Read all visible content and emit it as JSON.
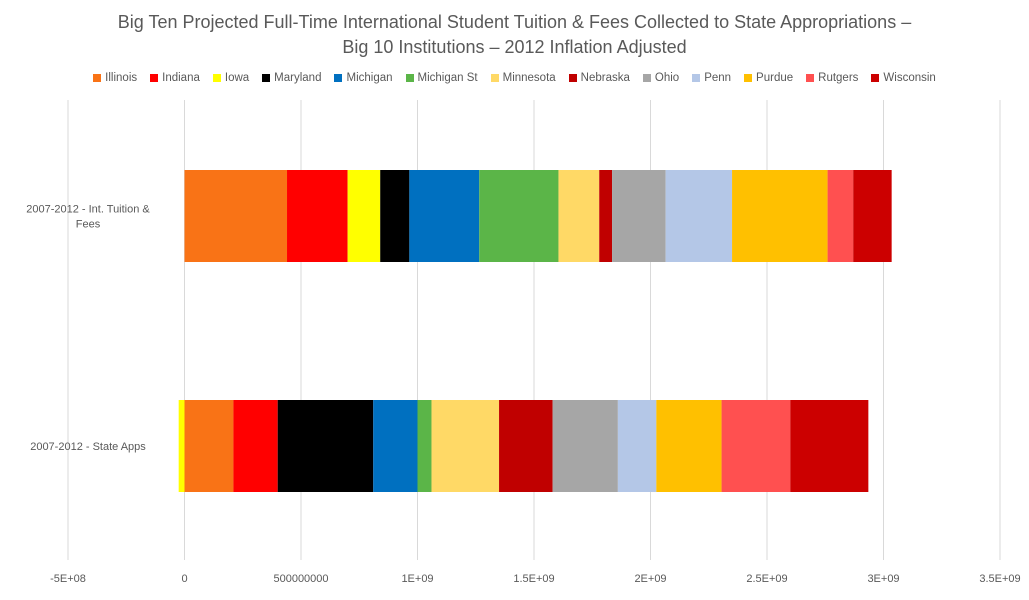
{
  "chart_data": {
    "type": "bar",
    "orientation": "horizontal",
    "stacked": true,
    "title_lines": [
      "Big Ten Projected Full-Time International Student Tuition & Fees Collected to State Appropriations  –",
      "Big 10 Institutions – 2012 Inflation Adjusted"
    ],
    "categories": [
      [
        "2007-2012 - Int. Tuition &",
        "Fees"
      ],
      [
        "2007-2012 - State Apps"
      ]
    ],
    "xlim": [
      -500000000,
      3500000000
    ],
    "xticks": [
      -500000000,
      0,
      500000000,
      1000000000,
      1500000000,
      2000000000,
      2500000000,
      3000000000,
      3500000000
    ],
    "xtick_labels": [
      "-5E+08",
      "0",
      "500000000",
      "1E+09",
      "1.5E+09",
      "2E+09",
      "2.5E+09",
      "3E+09",
      "3.5E+09"
    ],
    "grid": true,
    "legend_position": "top",
    "series": [
      {
        "name": "Illinois",
        "color": "#F97316",
        "values": [
          440000000,
          210000000
        ]
      },
      {
        "name": "Indiana",
        "color": "#FF0000",
        "values": [
          260000000,
          190000000
        ]
      },
      {
        "name": "Iowa",
        "color": "#FFFF00",
        "values": [
          140000000,
          -25000000
        ]
      },
      {
        "name": "Maryland",
        "color": "#000000",
        "values": [
          125000000,
          410000000
        ]
      },
      {
        "name": "Michigan",
        "color": "#0070C0",
        "values": [
          300000000,
          190000000
        ]
      },
      {
        "name": "Michigan St",
        "color": "#5BB548",
        "values": [
          340000000,
          60000000
        ]
      },
      {
        "name": "Minnesota",
        "color": "#FFD966",
        "values": [
          175000000,
          290000000
        ]
      },
      {
        "name": "Nebraska",
        "color": "#C00000",
        "values": [
          55000000,
          230000000
        ]
      },
      {
        "name": "Ohio",
        "color": "#A6A6A6",
        "values": [
          230000000,
          280000000
        ]
      },
      {
        "name": "Penn",
        "color": "#B4C7E7",
        "values": [
          285000000,
          165000000
        ]
      },
      {
        "name": "Purdue",
        "color": "#FFC000",
        "values": [
          410000000,
          280000000
        ]
      },
      {
        "name": "Rutgers",
        "color": "#FF5050",
        "values": [
          110000000,
          295000000
        ]
      },
      {
        "name": "Wisconsin",
        "color": "#CC0000",
        "values": [
          165000000,
          335000000
        ]
      }
    ]
  }
}
